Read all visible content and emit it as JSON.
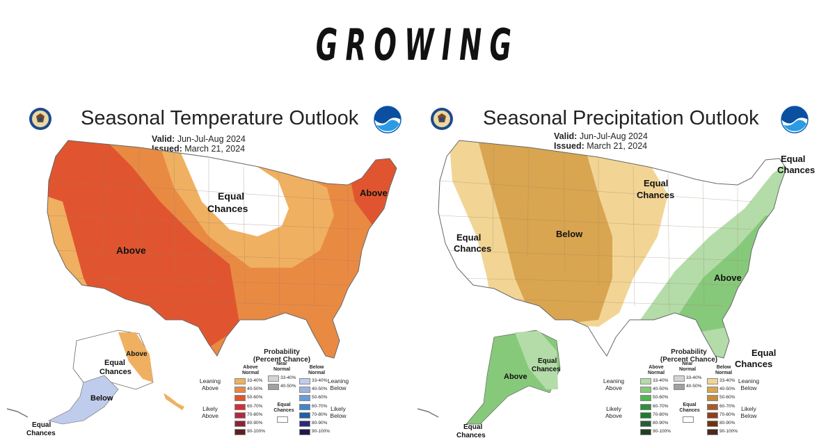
{
  "headline": "GROWING",
  "colors": {
    "temp_above_33": "#f0b061",
    "temp_above_40": "#e98a43",
    "temp_above_50": "#e0552f",
    "temp_above_60": "#d0303a",
    "temp_above_70": "#b22a40",
    "temp_above_80": "#8c2435",
    "temp_above_90": "#5e1f22",
    "temp_below_33": "#c0ccec",
    "temp_below_40": "#9ab4e0",
    "temp_below_50": "#6a9cd8",
    "temp_below_60": "#3f86cc",
    "temp_below_70": "#1f5fa8",
    "temp_below_80": "#2c2a7a",
    "temp_below_90": "#1d1a4a",
    "precip_above_33": "#b4dca8",
    "precip_above_40": "#87c97a",
    "precip_above_50": "#52b452",
    "precip_above_60": "#2e8f3d",
    "precip_above_70": "#1e7a2e",
    "precip_above_80": "#265d38",
    "precip_above_90": "#1f3e22",
    "precip_below_33": "#f2d595",
    "precip_below_40": "#d9a550",
    "precip_below_50": "#c98a3a",
    "precip_below_60": "#a85a2a",
    "precip_below_70": "#8e3f1a",
    "precip_below_80": "#6e3410",
    "precip_below_90": "#4a2a1e",
    "near_33": "#d4d4d4",
    "near_40": "#a0a0a0"
  },
  "temperature": {
    "title": "Seasonal Temperature Outlook",
    "valid_label": "Valid:",
    "valid_value": "Jun-Jul-Aug 2024",
    "issued_label": "Issued:",
    "issued_value": "March 21, 2024",
    "map_labels": {
      "above_west": "Above",
      "above_ne": "Above",
      "equal_1": "Equal",
      "equal_2": "Chances",
      "ak_above": "Above",
      "ak_equal_1": "Equal",
      "ak_equal_2": "Chances",
      "ak_below": "Below",
      "hi_equal_1": "Equal",
      "hi_equal_2": "Chances"
    }
  },
  "precipitation": {
    "title": "Seasonal Precipitation Outlook",
    "valid_label": "Valid:",
    "valid_value": "Jun-Jul-Aug 2024",
    "issued_label": "Issued:",
    "issued_value": "March 21, 2024",
    "map_labels": {
      "equal_ne_1": "Equal",
      "equal_ne_2": "Chances",
      "equal_mid_1": "Equal",
      "equal_mid_2": "Chances",
      "equal_west_1": "Equal",
      "equal_west_2": "Chances",
      "below": "Below",
      "above": "Above",
      "equal_se_1": "Equal",
      "equal_se_2": "Chances",
      "ak_equal_1": "Equal",
      "ak_equal_2": "Chances",
      "ak_above": "Above",
      "hi_equal_1": "Equal",
      "hi_equal_2": "Chances"
    }
  },
  "legend": {
    "title_1": "Probability",
    "title_2": "(Percent Chance)",
    "col_above_1": "Above",
    "col_above_2": "Normal",
    "col_near_1": "Near",
    "col_near_2": "Normal",
    "col_below_1": "Below",
    "col_below_2": "Normal",
    "leaning_1": "Leaning",
    "leaning_above_2": "Above",
    "leaning_below_2": "Below",
    "likely_1": "Likely",
    "likely_above_2": "Above",
    "likely_below_2": "Below",
    "equal_1": "Equal",
    "equal_2": "Chances",
    "ranges": [
      "33-40%",
      "40-50%",
      "50-60%",
      "60-70%",
      "70-80%",
      "80-90%",
      "90-100%"
    ],
    "near_ranges": [
      "33-40%",
      "40-50%"
    ]
  }
}
